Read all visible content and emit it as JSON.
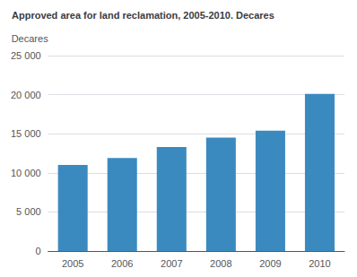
{
  "chart_data": {
    "type": "bar",
    "title": "Approved area for land reclamation, 2005-2010. Decares",
    "ylabel": "Decares",
    "categories": [
      "2005",
      "2006",
      "2007",
      "2008",
      "2009",
      "2010"
    ],
    "values": [
      11000,
      11900,
      13300,
      14500,
      15400,
      20100
    ],
    "color": "#3b8abf",
    "ylim": [
      0,
      25000
    ],
    "yticks": [
      0,
      {
        "value": 5000,
        "label": "5 000"
      },
      {
        "value": 10000,
        "label": "10 000"
      },
      {
        "value": 15000,
        "label": "15 000"
      },
      {
        "value": 20000,
        "label": "20 000"
      },
      {
        "value": 25000,
        "label": "25 000"
      }
    ],
    "grid": true
  }
}
